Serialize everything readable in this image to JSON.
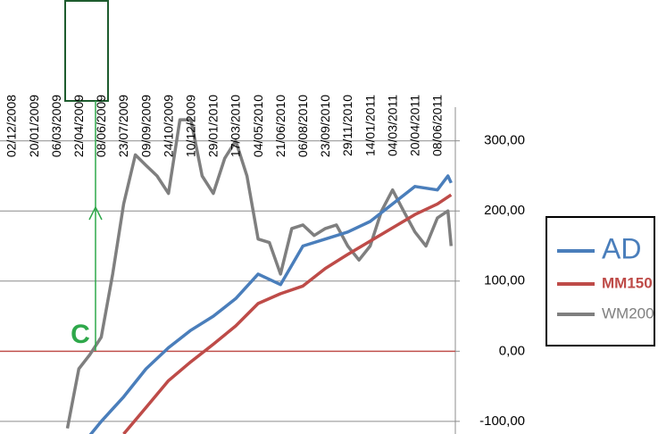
{
  "chart_data": {
    "type": "line",
    "xticks": [
      "02/12/2008",
      "20/01/2009",
      "06/03/2009",
      "22/04/2009",
      "08/06/2009",
      "23/07/2009",
      "09/09/2009",
      "24/10/2009",
      "10/12/2009",
      "29/01/2010",
      "17/03/2010",
      "04/05/2010",
      "21/06/2010",
      "06/08/2010",
      "23/09/2010",
      "29/11/2010",
      "14/01/2011",
      "04/03/2011",
      "20/04/2011",
      "08/06/2011"
    ],
    "ylim": [
      -118,
      348
    ],
    "yticks": [
      {
        "value": 300,
        "label": "300,00"
      },
      {
        "value": 200,
        "label": "200,00"
      },
      {
        "value": 100,
        "label": "100,00"
      },
      {
        "value": 0,
        "label": "0,00"
      },
      {
        "value": -100,
        "label": "-100,00"
      }
    ],
    "grid": true,
    "annotation": "C",
    "series": [
      {
        "name": "AD",
        "color": "#4a7ebb",
        "x": [
          "15/05/2009",
          "08/06/2009",
          "23/07/2009",
          "09/09/2009",
          "24/10/2009",
          "10/12/2009",
          "29/01/2010",
          "17/03/2010",
          "04/05/2010",
          "21/06/2010",
          "06/08/2010",
          "23/09/2010",
          "29/11/2010",
          "14/01/2011",
          "04/03/2011",
          "20/04/2011",
          "08/06/2011",
          "01/07/2011",
          "08/07/2011"
        ],
        "values": [
          -120,
          -100,
          -65,
          -25,
          5,
          30,
          50,
          75,
          110,
          95,
          150,
          160,
          170,
          185,
          210,
          235,
          230,
          250,
          240
        ]
      },
      {
        "name": "MM150",
        "color": "#be4b48",
        "x": [
          "23/07/2009",
          "09/09/2009",
          "24/10/2009",
          "10/12/2009",
          "29/01/2010",
          "17/03/2010",
          "04/05/2010",
          "21/06/2010",
          "06/08/2010",
          "23/09/2010",
          "29/11/2010",
          "14/01/2011",
          "04/03/2011",
          "20/04/2011",
          "08/06/2011",
          "08/07/2011"
        ],
        "values": [
          -118,
          -80,
          -42,
          -15,
          10,
          36,
          68,
          82,
          93,
          118,
          138,
          157,
          176,
          195,
          210,
          223
        ]
      },
      {
        "name": "WM200",
        "color": "#7f7f7f",
        "x": [
          "29/03/2009",
          "22/04/2009",
          "15/05/2009",
          "08/06/2009",
          "01/07/2009",
          "23/07/2009",
          "17/08/2009",
          "09/09/2009",
          "01/10/2009",
          "24/10/2009",
          "17/11/2009",
          "10/12/2009",
          "04/01/2010",
          "29/01/2010",
          "22/02/2010",
          "17/03/2010",
          "10/04/2010",
          "04/05/2010",
          "28/05/2010",
          "21/06/2010",
          "14/07/2010",
          "06/08/2010",
          "30/08/2010",
          "23/09/2010",
          "26/10/2010",
          "29/11/2010",
          "22/12/2010",
          "14/01/2011",
          "08/02/2011",
          "04/03/2011",
          "27/03/2011",
          "20/04/2011",
          "14/05/2011",
          "08/06/2011",
          "01/07/2011",
          "08/07/2011"
        ],
        "values": [
          -110,
          -25,
          -5,
          20,
          110,
          210,
          280,
          265,
          250,
          225,
          330,
          330,
          250,
          225,
          275,
          300,
          250,
          160,
          155,
          110,
          175,
          180,
          165,
          175,
          180,
          150,
          130,
          150,
          200,
          230,
          200,
          170,
          150,
          190,
          200,
          150
        ]
      }
    ]
  }
}
